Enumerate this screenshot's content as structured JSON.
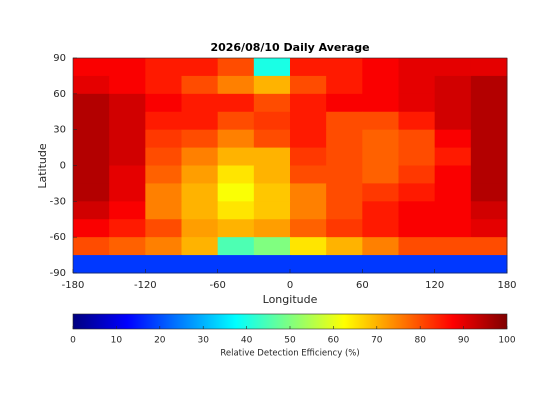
{
  "chart_data": {
    "type": "heatmap",
    "title": "2026/08/10 Daily Average",
    "x_label": "Longitude",
    "y_label": "Latitude",
    "xlim": [
      -180,
      180
    ],
    "xticks": [
      -180,
      -120,
      -60,
      0,
      60,
      120,
      180
    ],
    "ylim": [
      -90,
      90
    ],
    "yticks": [
      -90,
      -60,
      -30,
      0,
      30,
      60,
      90
    ],
    "lon_edges": [
      -180,
      -150,
      -120,
      -90,
      -60,
      -30,
      0,
      30,
      60,
      90,
      120,
      150,
      180
    ],
    "lat_edges": [
      90,
      75,
      60,
      45,
      30,
      15,
      0,
      -15,
      -30,
      -45,
      -60,
      -75,
      -90
    ],
    "z": [
      [
        88,
        88,
        85,
        85,
        80,
        40,
        85,
        85,
        88,
        90,
        90,
        90
      ],
      [
        90,
        88,
        85,
        80,
        75,
        70,
        80,
        85,
        88,
        90,
        92,
        95
      ],
      [
        95,
        92,
        88,
        85,
        85,
        80,
        85,
        88,
        88,
        90,
        92,
        95
      ],
      [
        95,
        92,
        85,
        85,
        80,
        82,
        85,
        80,
        80,
        85,
        92,
        95
      ],
      [
        95,
        92,
        82,
        80,
        75,
        80,
        85,
        80,
        78,
        80,
        88,
        95
      ],
      [
        95,
        92,
        80,
        75,
        70,
        70,
        82,
        80,
        78,
        80,
        85,
        95
      ],
      [
        95,
        90,
        78,
        72,
        65,
        70,
        80,
        80,
        78,
        82,
        88,
        95
      ],
      [
        95,
        90,
        75,
        70,
        62,
        68,
        75,
        80,
        82,
        85,
        88,
        95
      ],
      [
        92,
        88,
        75,
        70,
        65,
        68,
        75,
        80,
        85,
        88,
        88,
        92
      ],
      [
        88,
        85,
        80,
        72,
        70,
        72,
        78,
        82,
        85,
        88,
        88,
        90
      ],
      [
        80,
        78,
        75,
        70,
        45,
        50,
        65,
        70,
        75,
        80,
        80,
        80
      ],
      [
        18,
        18,
        18,
        18,
        18,
        18,
        18,
        18,
        18,
        18,
        18,
        18
      ]
    ],
    "colormap": "jet",
    "clim": [
      0,
      100
    ],
    "cticks": [
      0,
      10,
      20,
      30,
      40,
      50,
      60,
      70,
      80,
      90,
      100
    ],
    "colorbar_label": "Relative Detection Efficiency (%)"
  }
}
